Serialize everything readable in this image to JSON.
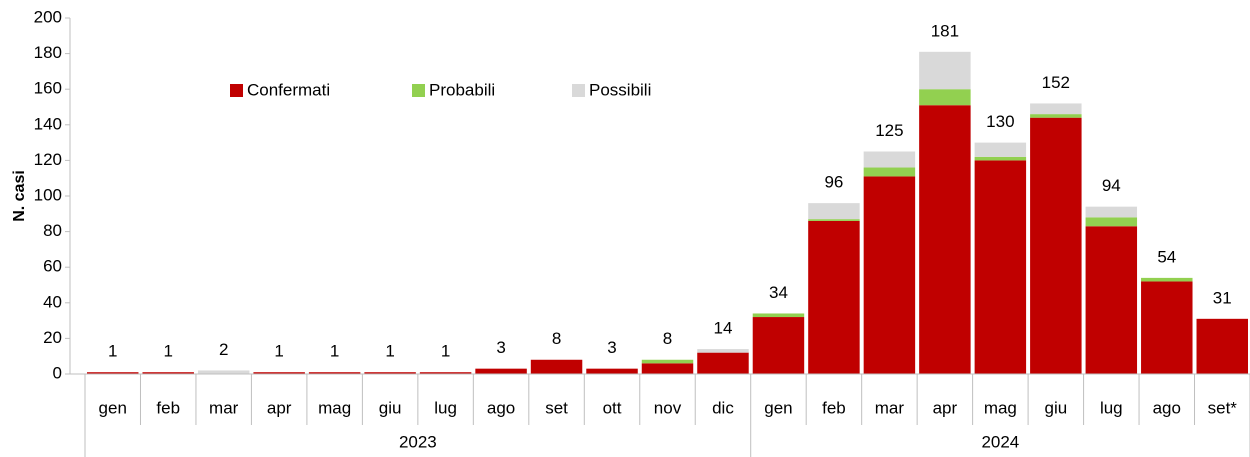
{
  "chart_data": {
    "type": "stacked_bar",
    "y_label": "N. casi",
    "groups": [
      {
        "label": "2023",
        "categories": [
          "gen",
          "feb",
          "mar",
          "apr",
          "mag",
          "giu",
          "lug",
          "ago",
          "set",
          "ott",
          "nov",
          "dic"
        ]
      },
      {
        "label": "2024",
        "categories": [
          "gen",
          "feb",
          "mar",
          "apr",
          "mag",
          "giu",
          "lug",
          "ago",
          "set*"
        ]
      }
    ],
    "series": [
      {
        "name": "Confermati",
        "color": "#c00000",
        "values": [
          1,
          1,
          0,
          1,
          1,
          1,
          1,
          3,
          8,
          3,
          6,
          12,
          32,
          86,
          111,
          151,
          120,
          144,
          83,
          52,
          31
        ]
      },
      {
        "name": "Probabili",
        "color": "#92d050",
        "values": [
          0,
          0,
          0,
          0,
          0,
          0,
          0,
          0,
          0,
          0,
          2,
          0,
          2,
          1,
          5,
          9,
          2,
          2,
          5,
          2,
          0
        ]
      },
      {
        "name": "Possibili",
        "color": "#d9d9d9",
        "values": [
          0,
          0,
          2,
          0,
          0,
          0,
          0,
          0,
          0,
          0,
          0,
          2,
          0,
          9,
          9,
          21,
          8,
          6,
          6,
          0,
          0
        ]
      }
    ],
    "totals": [
      1,
      1,
      2,
      1,
      1,
      1,
      1,
      3,
      8,
      3,
      8,
      14,
      34,
      96,
      125,
      181,
      130,
      152,
      94,
      54,
      31
    ],
    "ylim": [
      0,
      200
    ],
    "yticks": [
      0,
      20,
      40,
      60,
      80,
      100,
      120,
      140,
      160,
      180,
      200
    ],
    "legend": "top-left"
  }
}
